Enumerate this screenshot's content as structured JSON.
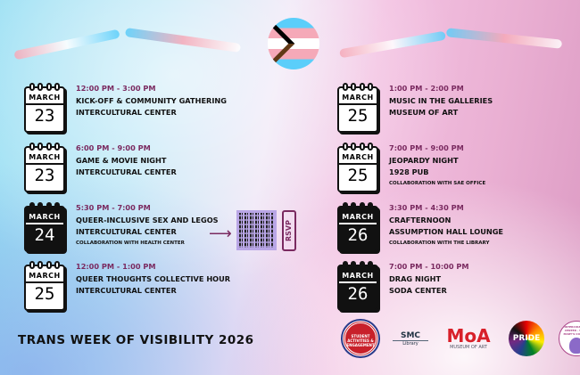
{
  "title": "TRANS WEEK OF VISIBILITY 2026",
  "rsvp": "RSVP",
  "left_events": [
    {
      "month": "MARCH",
      "day": "23",
      "time": "12:00 PM - 3:00 PM",
      "name": "KICK-OFF & COMMUNITY GATHERING",
      "location": "INTERCULTURAL CENTER",
      "note": "",
      "dark": false
    },
    {
      "month": "MARCH",
      "day": "23",
      "time": "6:00 PM - 9:00 PM",
      "name": "GAME & MOVIE NIGHT",
      "location": "INTERCULTURAL CENTER",
      "note": "",
      "dark": false
    },
    {
      "month": "MARCH",
      "day": "24",
      "time": "5:30 PM - 7:00 PM",
      "name": "QUEER-INCLUSIVE SEX AND LEGOS",
      "location": "INTERCULTURAL CENTER",
      "note": "COLLABORATION WITH HEALTH CENTER",
      "dark": true
    },
    {
      "month": "MARCH",
      "day": "25",
      "time": "12:00 PM - 1:00 PM",
      "name": "QUEER THOUGHTS COLLECTIVE HOUR",
      "location": "INTERCULTURAL CENTER",
      "note": "",
      "dark": false
    }
  ],
  "right_events": [
    {
      "month": "MARCH",
      "day": "25",
      "time": "1:00 PM - 2:00 PM",
      "name": "MUSIC IN THE GALLERIES",
      "location": "MUSEUM OF ART",
      "note": "",
      "dark": false
    },
    {
      "month": "MARCH",
      "day": "25",
      "time": "7:00 PM - 9:00 PM",
      "name": "JEOPARDY NIGHT",
      "location": "1928 PUB",
      "note": "COLLABORATION WITH SAE OFFICE",
      "dark": false
    },
    {
      "month": "MARCH",
      "day": "26",
      "time": "3:30 PM - 4:30 PM",
      "name": "CRAFTERNOON",
      "location": "ASSUMPTION HALL LOUNGE",
      "note": "COLLABORATION WITH THE LIBRARY",
      "dark": true
    },
    {
      "month": "MARCH",
      "day": "26",
      "time": "7:00 PM - 10:00 PM",
      "name": "DRAG NIGHT",
      "location": "SODA CENTER",
      "note": "",
      "dark": true
    }
  ],
  "logos": {
    "sae": "STUDENT ACTIVITIES & ENGAGEMENT",
    "library_mark": "SMC",
    "library": "Library",
    "moa_mark": "MoA",
    "moa": "MUSEUM OF ART",
    "pride": "PRIDE",
    "ic": "INTERCULTURAL CENTER · SAINT MARY'S COLLEGE"
  },
  "colors": {
    "accent": "#7a2a60",
    "trans_blue": "#5bcefa",
    "trans_pink": "#f5a9b8"
  }
}
